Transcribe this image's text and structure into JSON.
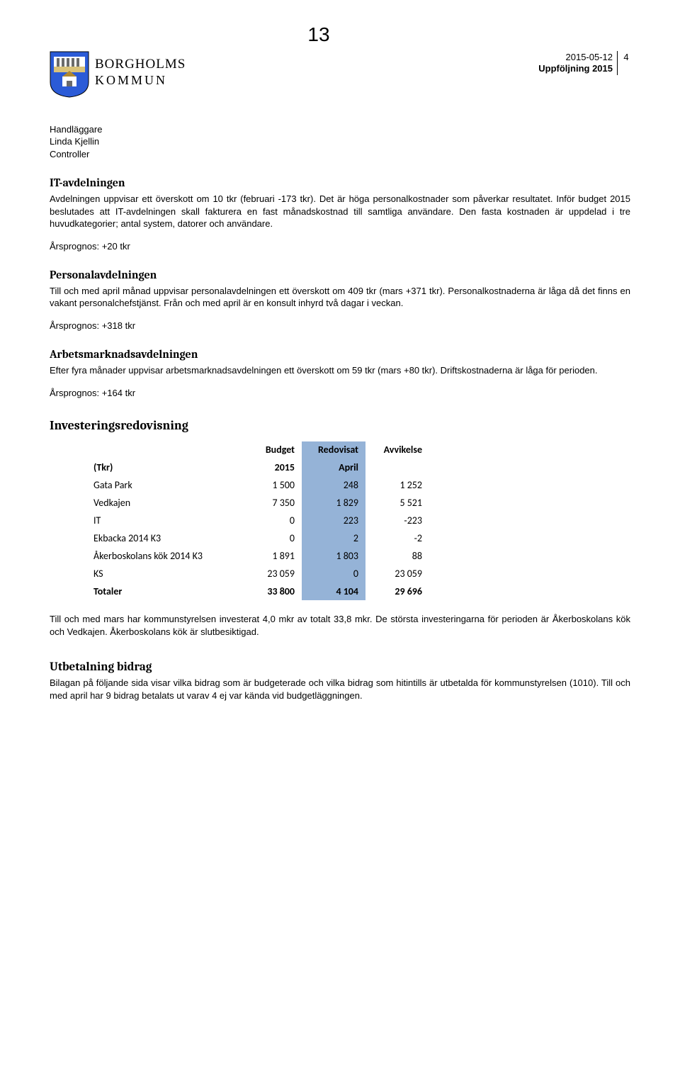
{
  "page_number_top": "13",
  "meta": {
    "date": "2015-05-12",
    "page_col": "4",
    "subtitle": "Uppföljning 2015"
  },
  "brand": {
    "line1": "BORGHOLMS",
    "line2": "KOMMUN"
  },
  "handler": {
    "label": "Handläggare",
    "name": "Linda Kjellin",
    "role": "Controller"
  },
  "sections": {
    "it": {
      "title": "IT-avdelningen",
      "body": "Avdelningen uppvisar ett överskott om 10 tkr (februari -173 tkr). Det är höga personalkostnader som påverkar resultatet. Inför budget 2015 beslutades att IT-avdelningen skall fakturera en fast månadskostnad till samtliga användare. Den fasta kostnaden är uppdelad i tre huvudkategorier; antal system, datorer och användare.",
      "prognos": "Årsprognos: +20 tkr"
    },
    "personal": {
      "title": "Personalavdelningen",
      "body": "Till och med april månad uppvisar personalavdelningen ett överskott om 409 tkr (mars +371 tkr). Personalkostnaderna är låga då det finns en vakant personalchefstjänst. Från och med april är en konsult inhyrd två dagar i veckan.",
      "prognos": "Årsprognos: +318 tkr"
    },
    "arbets": {
      "title": "Arbetsmarknadsavdelningen",
      "body": "Efter fyra månader uppvisar arbetsmarknadsavdelningen ett överskott om 59 tkr (mars +80 tkr). Driftskostnaderna är låga för perioden.",
      "prognos": "Årsprognos: +164 tkr"
    }
  },
  "invest": {
    "title": "Investeringsredovisning",
    "headers": {
      "label_top": "",
      "label_bottom": "(Tkr)",
      "budget_top": "Budget",
      "budget_bottom": "2015",
      "redov_top": "Redovisat",
      "redov_bottom": "April",
      "avvik_top": "Avvikelse",
      "avvik_bottom": ""
    },
    "rows": [
      {
        "label": "Gata Park",
        "budget": "1 500",
        "redov": "248",
        "avvik": "1 252"
      },
      {
        "label": "Vedkajen",
        "budget": "7 350",
        "redov": "1 829",
        "avvik": "5 521"
      },
      {
        "label": "IT",
        "budget": "0",
        "redov": "223",
        "avvik": "-223"
      },
      {
        "label": "Ekbacka 2014 K3",
        "budget": "0",
        "redov": "2",
        "avvik": "-2"
      },
      {
        "label": "Åkerboskolans kök 2014 K3",
        "budget": "1 891",
        "redov": "1 803",
        "avvik": "88"
      },
      {
        "label": "KS",
        "budget": "23 059",
        "redov": "0",
        "avvik": "23 059"
      }
    ],
    "total": {
      "label": "Totaler",
      "budget": "33 800",
      "redov": "4 104",
      "avvik": "29 696"
    },
    "colors": {
      "highlight": "#95b3d7"
    },
    "after_text": "Till och med mars har kommunstyrelsen investerat 4,0 mkr av totalt 33,8 mkr. De största investeringarna för perioden är Åkerboskolans kök och Vedkajen. Åkerboskolans kök är slutbesiktigad."
  },
  "utbet": {
    "title": "Utbetalning bidrag",
    "body": "Bilagan på följande sida visar vilka bidrag som är budgeterade och vilka bidrag som hitintills är utbetalda för kommunstyrelsen (1010). Till och med april har 9 bidrag betalats ut varav 4 ej var kända vid budgetläggningen."
  }
}
